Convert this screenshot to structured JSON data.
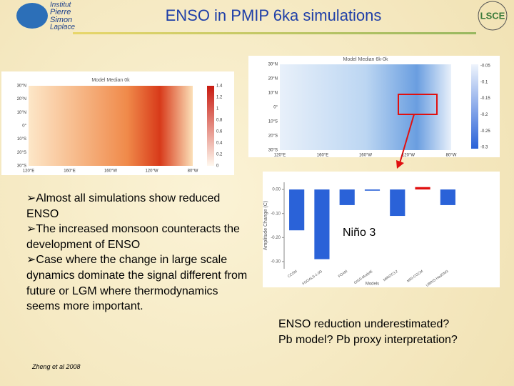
{
  "header": {
    "title": "ENSO in PMIP 6ka simulations",
    "logo_left": [
      "Institut",
      "Pierre",
      "Simon",
      "Laplace"
    ],
    "logo_right": "LSCE"
  },
  "maps": [
    {
      "title": "Model Median 0k",
      "lat": [
        "30°N",
        "20°N",
        "10°N",
        "0°",
        "10°S",
        "20°S",
        "30°S"
      ],
      "lon": [
        "120°E",
        "160°E",
        "160°W",
        "120°W",
        "80°W"
      ],
      "colorbar": [
        "1.4",
        "1.2",
        "1",
        "0.8",
        "0.6",
        "0.4",
        "0.2",
        "0"
      ]
    },
    {
      "title": "Model Median 6k-0k",
      "lat": [
        "30°N",
        "20°N",
        "10°N",
        "0°",
        "10°S",
        "20°S",
        "30°S"
      ],
      "lon": [
        "120°E",
        "160°E",
        "160°W",
        "120°W",
        "80°W"
      ],
      "colorbar": [
        "-0.05",
        "-0.1",
        "-0.15",
        "-0.2",
        "-0.25",
        "-0.3"
      ]
    }
  ],
  "bullets": [
    "Almost all simulations show reduced ENSO",
    "The increased monsoon counteracts the development of ENSO",
    "Case where the change in large scale dynamics dominate the signal different from future or LGM where thermodynamics seems more important."
  ],
  "citation": "Zheng et al 2008",
  "region_label": "Niño 3",
  "conclusion": [
    "ENSO reduction underestimated?",
    "Pb model? Pb proxy interpretation?"
  ],
  "chart_data": {
    "type": "bar",
    "ylabel": "Amplitude Change (C)",
    "xlabel": "Models",
    "categories": [
      "CCSM",
      "FGOALS-1.0G",
      "FOAM",
      "GISS-ModelE",
      "MIROC3.2",
      "MRI-CGCM",
      "UBRIS-HadCM3"
    ],
    "values": [
      -0.17,
      -0.29,
      -0.065,
      -0.005,
      -0.11,
      0.01,
      -0.065
    ],
    "colors": [
      "#2a62d8",
      "#2a62d8",
      "#2a62d8",
      "#2a62d8",
      "#2a62d8",
      "#e01010",
      "#2a62d8"
    ],
    "ylim": [
      -0.33,
      0.03
    ],
    "yticks": [
      {
        "value": 0,
        "label": "0.00"
      },
      {
        "value": -0.1,
        "label": "-0.10"
      },
      {
        "value": -0.2,
        "label": "-0.20"
      },
      {
        "value": -0.3,
        "label": "-0.30"
      }
    ]
  }
}
